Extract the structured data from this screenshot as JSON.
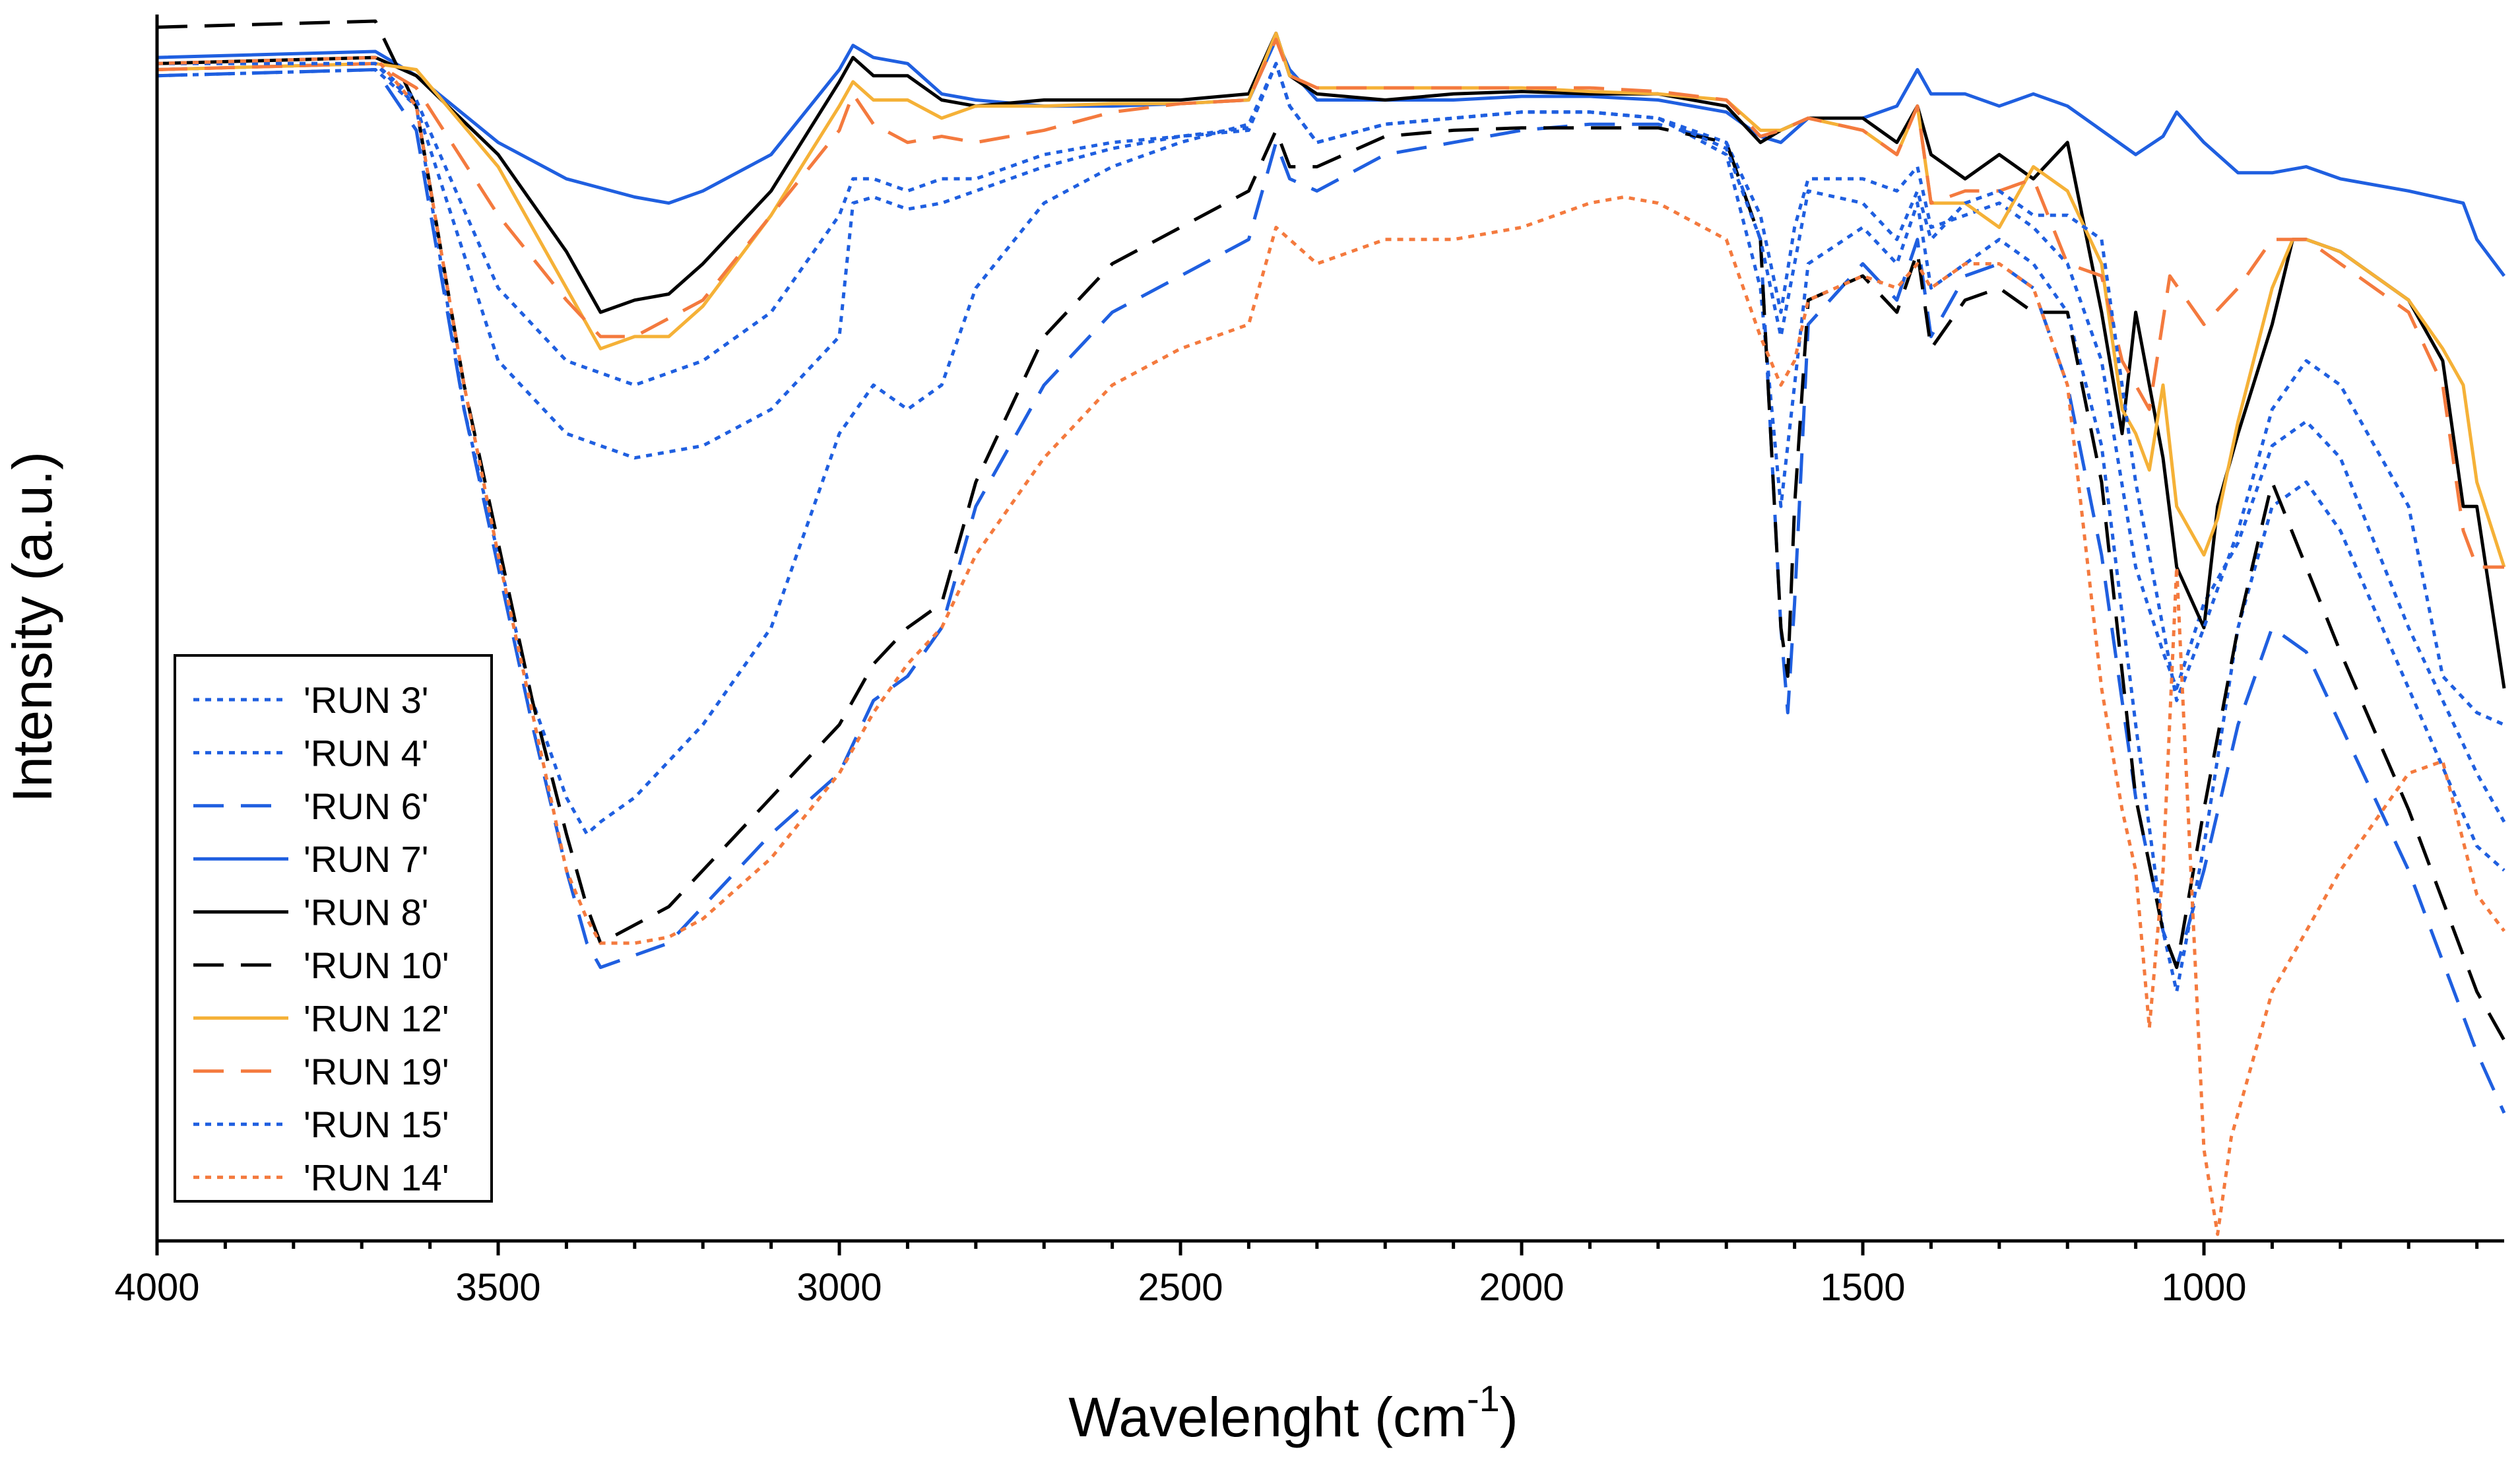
{
  "chart_data": {
    "type": "line",
    "title": "",
    "xlabel": "Wavelenght (cm",
    "xlabel_superscript": "-1",
    "xlabel_suffix": ")",
    "ylabel": "Intensity (a.u.)",
    "xlim": [
      4000,
      560
    ],
    "ylim": [
      0,
      1
    ],
    "x_reversed": true,
    "yticks_shown": false,
    "xticks": [
      4000,
      3500,
      3000,
      2500,
      2000,
      1500,
      1000
    ],
    "xtick_labels": [
      "4000",
      "3500",
      "3000",
      "2500",
      "2000",
      "1500",
      "1000"
    ],
    "grid": false,
    "legend_position": "bottom-left",
    "series": [
      {
        "name": "'RUN 3'",
        "color": "#1f5fe0",
        "dash": "dotted",
        "x": [
          4000,
          3680,
          3620,
          3500,
          3400,
          3300,
          3200,
          3100,
          3000,
          2980,
          2950,
          2900,
          2850,
          2800,
          2700,
          2600,
          2500,
          2400,
          2360,
          2340,
          2300,
          2200,
          2100,
          2000,
          1900,
          1800,
          1700,
          1650,
          1620,
          1600,
          1580,
          1500,
          1450,
          1420,
          1400,
          1350,
          1300,
          1250,
          1200,
          1150,
          1100,
          1060,
          1040,
          1000,
          950,
          900,
          850,
          800,
          700,
          600,
          560
        ],
        "y": [
          0.955,
          0.96,
          0.93,
          0.72,
          0.66,
          0.64,
          0.65,
          0.68,
          0.74,
          0.85,
          0.855,
          0.845,
          0.85,
          0.86,
          0.88,
          0.895,
          0.905,
          0.912,
          0.965,
          0.93,
          0.9,
          0.915,
          0.92,
          0.925,
          0.925,
          0.92,
          0.9,
          0.84,
          0.76,
          0.83,
          0.87,
          0.87,
          0.86,
          0.88,
          0.83,
          0.84,
          0.85,
          0.83,
          0.8,
          0.72,
          0.55,
          0.48,
          0.45,
          0.52,
          0.57,
          0.65,
          0.67,
          0.64,
          0.5,
          0.38,
          0.34
        ]
      },
      {
        "name": "'RUN 4'",
        "color": "#1f5fe0",
        "dash": "dotted",
        "x": [
          4000,
          3680,
          3620,
          3550,
          3500,
          3450,
          3400,
          3370,
          3350,
          3300,
          3200,
          3100,
          3000,
          2950,
          2900,
          2850,
          2800,
          2700,
          2600,
          2500,
          2400,
          2360,
          2340,
          2300,
          2200,
          2100,
          2000,
          1900,
          1800,
          1700,
          1650,
          1620,
          1600,
          1580,
          1500,
          1450,
          1420,
          1400,
          1350,
          1300,
          1250,
          1200,
          1150,
          1100,
          1060,
          1040,
          1000,
          950,
          900,
          850,
          800,
          700,
          600,
          560
        ],
        "y": [
          0.96,
          0.965,
          0.93,
          0.68,
          0.56,
          0.44,
          0.36,
          0.33,
          0.34,
          0.36,
          0.42,
          0.5,
          0.66,
          0.7,
          0.68,
          0.7,
          0.78,
          0.85,
          0.88,
          0.9,
          0.915,
          0.965,
          0.93,
          0.9,
          0.915,
          0.92,
          0.925,
          0.925,
          0.92,
          0.89,
          0.78,
          0.6,
          0.7,
          0.8,
          0.83,
          0.8,
          0.85,
          0.78,
          0.8,
          0.82,
          0.8,
          0.76,
          0.65,
          0.42,
          0.25,
          0.2,
          0.32,
          0.5,
          0.6,
          0.62,
          0.58,
          0.45,
          0.32,
          0.3
        ]
      },
      {
        "name": "'RUN 6'",
        "color": "#1f5fe0",
        "dash": "dashed",
        "x": [
          4000,
          3680,
          3620,
          3550,
          3500,
          3450,
          3400,
          3370,
          3350,
          3300,
          3250,
          3200,
          3100,
          3000,
          2950,
          2900,
          2850,
          2800,
          2700,
          2600,
          2500,
          2400,
          2360,
          2340,
          2300,
          2200,
          2100,
          2000,
          1900,
          1800,
          1700,
          1650,
          1620,
          1610,
          1600,
          1580,
          1500,
          1450,
          1420,
          1400,
          1350,
          1300,
          1250,
          1200,
          1150,
          1100,
          1060,
          1040,
          1000,
          950,
          900,
          850,
          800,
          700,
          600,
          560
        ],
        "y": [
          0.955,
          0.96,
          0.91,
          0.68,
          0.55,
          0.42,
          0.3,
          0.24,
          0.22,
          0.23,
          0.24,
          0.27,
          0.33,
          0.38,
          0.44,
          0.46,
          0.5,
          0.6,
          0.7,
          0.76,
          0.79,
          0.82,
          0.9,
          0.87,
          0.86,
          0.89,
          0.9,
          0.91,
          0.915,
          0.915,
          0.9,
          0.82,
          0.5,
          0.43,
          0.52,
          0.75,
          0.8,
          0.77,
          0.82,
          0.74,
          0.79,
          0.8,
          0.78,
          0.7,
          0.56,
          0.36,
          0.25,
          0.22,
          0.3,
          0.42,
          0.5,
          0.48,
          0.42,
          0.3,
          0.15,
          0.1
        ]
      },
      {
        "name": "'RUN 7'",
        "color": "#1f5fe0",
        "dash": "solid",
        "x": [
          4000,
          3680,
          3620,
          3500,
          3400,
          3300,
          3250,
          3200,
          3100,
          3000,
          2980,
          2950,
          2900,
          2850,
          2800,
          2700,
          2600,
          2500,
          2400,
          2360,
          2340,
          2300,
          2200,
          2100,
          2000,
          1900,
          1800,
          1700,
          1650,
          1620,
          1600,
          1580,
          1500,
          1450,
          1420,
          1400,
          1350,
          1300,
          1250,
          1200,
          1150,
          1100,
          1060,
          1040,
          1000,
          950,
          900,
          850,
          800,
          700,
          620,
          600,
          560
        ],
        "y": [
          0.97,
          0.975,
          0.955,
          0.9,
          0.87,
          0.855,
          0.85,
          0.86,
          0.89,
          0.96,
          0.98,
          0.97,
          0.965,
          0.94,
          0.935,
          0.93,
          0.93,
          0.932,
          0.935,
          0.985,
          0.96,
          0.935,
          0.935,
          0.935,
          0.938,
          0.938,
          0.935,
          0.925,
          0.905,
          0.9,
          0.91,
          0.92,
          0.92,
          0.93,
          0.96,
          0.94,
          0.94,
          0.93,
          0.94,
          0.93,
          0.91,
          0.89,
          0.905,
          0.925,
          0.9,
          0.875,
          0.875,
          0.88,
          0.87,
          0.86,
          0.85,
          0.82,
          0.79
        ]
      },
      {
        "name": "'RUN 8'",
        "color": "#000000",
        "dash": "solid",
        "x": [
          4000,
          3680,
          3620,
          3500,
          3400,
          3350,
          3300,
          3250,
          3200,
          3100,
          3000,
          2980,
          2950,
          2900,
          2850,
          2800,
          2700,
          2600,
          2500,
          2400,
          2360,
          2340,
          2300,
          2200,
          2100,
          2000,
          1900,
          1800,
          1700,
          1650,
          1620,
          1600,
          1580,
          1500,
          1450,
          1420,
          1400,
          1350,
          1300,
          1250,
          1200,
          1150,
          1120,
          1100,
          1080,
          1060,
          1040,
          1000,
          980,
          950,
          900,
          870,
          850,
          800,
          700,
          650,
          620,
          600,
          560
        ],
        "y": [
          0.965,
          0.97,
          0.955,
          0.89,
          0.81,
          0.76,
          0.77,
          0.775,
          0.8,
          0.86,
          0.95,
          0.97,
          0.955,
          0.955,
          0.935,
          0.93,
          0.935,
          0.935,
          0.935,
          0.94,
          0.99,
          0.955,
          0.94,
          0.935,
          0.94,
          0.942,
          0.94,
          0.94,
          0.93,
          0.9,
          0.91,
          0.915,
          0.92,
          0.92,
          0.9,
          0.93,
          0.89,
          0.87,
          0.89,
          0.87,
          0.9,
          0.76,
          0.66,
          0.76,
          0.7,
          0.64,
          0.55,
          0.5,
          0.6,
          0.66,
          0.75,
          0.82,
          0.82,
          0.81,
          0.77,
          0.72,
          0.6,
          0.6,
          0.45
        ]
      },
      {
        "name": "'RUN 10'",
        "color": "#000000",
        "dash": "dashed",
        "x": [
          4000,
          3680,
          3620,
          3550,
          3500,
          3450,
          3400,
          3370,
          3350,
          3300,
          3250,
          3200,
          3100,
          3000,
          2950,
          2900,
          2850,
          2800,
          2700,
          2600,
          2500,
          2400,
          2360,
          2340,
          2300,
          2200,
          2100,
          2000,
          1900,
          1800,
          1700,
          1650,
          1620,
          1610,
          1600,
          1580,
          1500,
          1450,
          1420,
          1400,
          1350,
          1300,
          1250,
          1200,
          1150,
          1100,
          1060,
          1040,
          1000,
          950,
          900,
          850,
          800,
          700,
          600,
          560
        ],
        "y": [
          0.995,
          1.0,
          0.93,
          0.7,
          0.57,
          0.44,
          0.33,
          0.27,
          0.24,
          0.255,
          0.27,
          0.3,
          0.36,
          0.42,
          0.47,
          0.5,
          0.52,
          0.62,
          0.74,
          0.8,
          0.83,
          0.86,
          0.91,
          0.88,
          0.88,
          0.905,
          0.91,
          0.912,
          0.912,
          0.912,
          0.9,
          0.82,
          0.5,
          0.46,
          0.6,
          0.77,
          0.79,
          0.76,
          0.81,
          0.73,
          0.77,
          0.78,
          0.76,
          0.76,
          0.62,
          0.36,
          0.25,
          0.22,
          0.35,
          0.5,
          0.62,
          0.55,
          0.48,
          0.35,
          0.2,
          0.16
        ]
      },
      {
        "name": "'RUN 12'",
        "color": "#f5b137",
        "dash": "solid",
        "x": [
          4000,
          3680,
          3620,
          3500,
          3400,
          3350,
          3300,
          3250,
          3200,
          3100,
          3000,
          2980,
          2950,
          2900,
          2850,
          2800,
          2700,
          2600,
          2500,
          2400,
          2360,
          2340,
          2300,
          2200,
          2100,
          2000,
          1900,
          1800,
          1700,
          1650,
          1620,
          1600,
          1580,
          1500,
          1450,
          1420,
          1400,
          1350,
          1300,
          1250,
          1200,
          1150,
          1120,
          1100,
          1080,
          1060,
          1040,
          1000,
          980,
          950,
          900,
          870,
          850,
          800,
          700,
          650,
          620,
          600,
          560
        ],
        "y": [
          0.96,
          0.965,
          0.96,
          0.88,
          0.78,
          0.73,
          0.74,
          0.74,
          0.765,
          0.84,
          0.93,
          0.95,
          0.935,
          0.935,
          0.92,
          0.93,
          0.93,
          0.932,
          0.932,
          0.935,
          0.99,
          0.955,
          0.945,
          0.945,
          0.945,
          0.945,
          0.942,
          0.94,
          0.935,
          0.91,
          0.91,
          0.915,
          0.92,
          0.91,
          0.89,
          0.93,
          0.85,
          0.85,
          0.83,
          0.88,
          0.86,
          0.8,
          0.68,
          0.66,
          0.63,
          0.7,
          0.6,
          0.56,
          0.59,
          0.67,
          0.78,
          0.82,
          0.82,
          0.81,
          0.77,
          0.73,
          0.7,
          0.62,
          0.55
        ]
      },
      {
        "name": "'RUN 19'",
        "color": "#f47a3e",
        "dash": "dashed",
        "x": [
          4000,
          3680,
          3620,
          3500,
          3400,
          3350,
          3300,
          3200,
          3100,
          3000,
          2980,
          2950,
          2900,
          2850,
          2800,
          2700,
          2600,
          2500,
          2400,
          2360,
          2340,
          2300,
          2200,
          2100,
          2000,
          1900,
          1800,
          1700,
          1650,
          1620,
          1600,
          1580,
          1500,
          1450,
          1420,
          1400,
          1350,
          1300,
          1250,
          1200,
          1150,
          1120,
          1100,
          1080,
          1050,
          1000,
          950,
          900,
          850,
          800,
          700,
          650,
          620,
          600,
          560
        ],
        "y": [
          0.96,
          0.965,
          0.945,
          0.84,
          0.77,
          0.74,
          0.74,
          0.77,
          0.84,
          0.91,
          0.94,
          0.915,
          0.9,
          0.905,
          0.9,
          0.91,
          0.925,
          0.932,
          0.935,
          0.985,
          0.955,
          0.945,
          0.945,
          0.945,
          0.945,
          0.945,
          0.942,
          0.935,
          0.905,
          0.91,
          0.915,
          0.92,
          0.91,
          0.89,
          0.93,
          0.85,
          0.86,
          0.86,
          0.87,
          0.8,
          0.79,
          0.72,
          0.7,
          0.68,
          0.79,
          0.75,
          0.78,
          0.82,
          0.82,
          0.8,
          0.76,
          0.7,
          0.58,
          0.55,
          0.55
        ]
      },
      {
        "name": "'RUN 15'",
        "color": "#1f5fe0",
        "dash": "dotted",
        "x": [
          4000,
          3680,
          3620,
          3500,
          3400,
          3300,
          3200,
          3100,
          3000,
          2980,
          2950,
          2900,
          2850,
          2800,
          2700,
          2600,
          2500,
          2400,
          2360,
          2340,
          2300,
          2200,
          2100,
          2000,
          1900,
          1800,
          1700,
          1650,
          1620,
          1600,
          1580,
          1500,
          1450,
          1420,
          1400,
          1350,
          1300,
          1250,
          1200,
          1150,
          1100,
          1060,
          1040,
          1000,
          950,
          900,
          850,
          800,
          700,
          650,
          600,
          560
        ],
        "y": [
          0.965,
          0.965,
          0.935,
          0.78,
          0.72,
          0.7,
          0.72,
          0.76,
          0.84,
          0.87,
          0.87,
          0.86,
          0.87,
          0.87,
          0.89,
          0.9,
          0.905,
          0.91,
          0.965,
          0.93,
          0.9,
          0.915,
          0.92,
          0.925,
          0.925,
          0.92,
          0.895,
          0.82,
          0.74,
          0.8,
          0.86,
          0.85,
          0.82,
          0.86,
          0.82,
          0.85,
          0.86,
          0.84,
          0.84,
          0.82,
          0.62,
          0.5,
          0.44,
          0.5,
          0.58,
          0.68,
          0.72,
          0.7,
          0.6,
          0.46,
          0.43,
          0.42
        ]
      },
      {
        "name": "'RUN 14'",
        "color": "#f47a3e",
        "dash": "dotted",
        "x": [
          4000,
          3680,
          3620,
          3550,
          3500,
          3450,
          3400,
          3370,
          3350,
          3300,
          3250,
          3200,
          3100,
          3000,
          2950,
          2900,
          2850,
          2800,
          2700,
          2600,
          2500,
          2400,
          2360,
          2340,
          2300,
          2200,
          2100,
          2000,
          1900,
          1850,
          1800,
          1700,
          1650,
          1620,
          1600,
          1580,
          1500,
          1450,
          1420,
          1400,
          1350,
          1300,
          1250,
          1200,
          1170,
          1150,
          1120,
          1100,
          1080,
          1060,
          1040,
          1000,
          980,
          960,
          900,
          850,
          800,
          700,
          650,
          600,
          560
        ],
        "y": [
          0.965,
          0.97,
          0.93,
          0.7,
          0.56,
          0.43,
          0.3,
          0.26,
          0.24,
          0.24,
          0.245,
          0.26,
          0.31,
          0.38,
          0.43,
          0.47,
          0.5,
          0.56,
          0.64,
          0.7,
          0.73,
          0.75,
          0.83,
          0.82,
          0.8,
          0.82,
          0.82,
          0.83,
          0.85,
          0.855,
          0.85,
          0.82,
          0.74,
          0.7,
          0.72,
          0.77,
          0.79,
          0.78,
          0.8,
          0.78,
          0.8,
          0.8,
          0.78,
          0.7,
          0.55,
          0.45,
          0.35,
          0.3,
          0.17,
          0.3,
          0.55,
          0.07,
          0.0,
          0.08,
          0.2,
          0.25,
          0.3,
          0.38,
          0.39,
          0.28,
          0.25
        ]
      }
    ]
  }
}
